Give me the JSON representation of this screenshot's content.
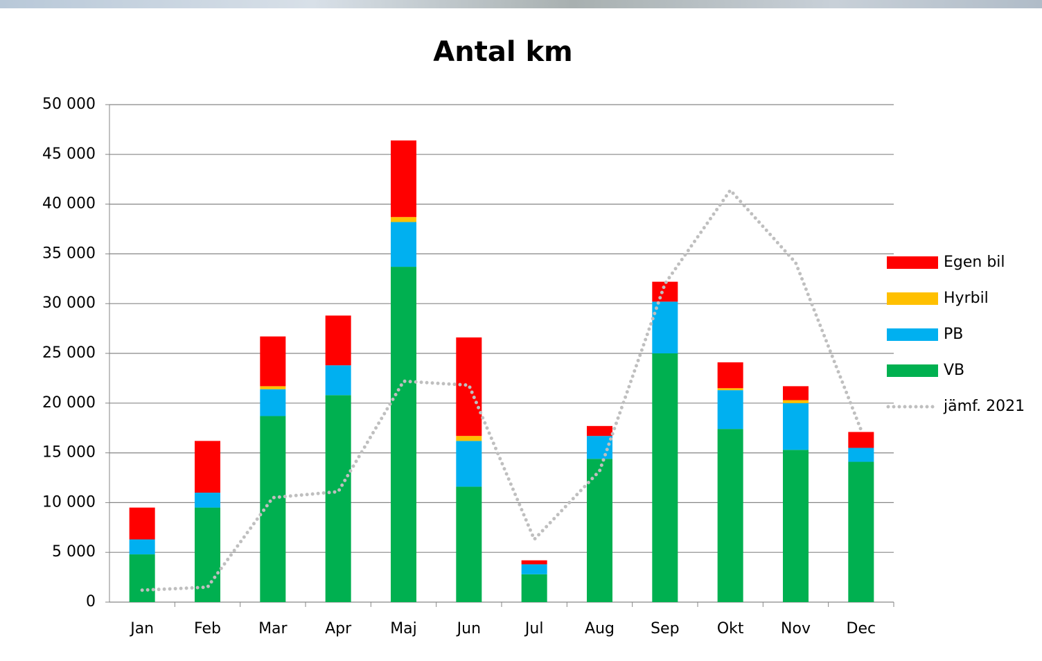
{
  "chart_data": {
    "type": "stacked-bar",
    "title": "Antal km",
    "categories": [
      "Jan",
      "Feb",
      "Mar",
      "Apr",
      "Maj",
      "Jun",
      "Jul",
      "Aug",
      "Sep",
      "Okt",
      "Nov",
      "Dec"
    ],
    "series": [
      {
        "name": "VB",
        "color": "#00b050",
        "values": [
          4800,
          9500,
          18700,
          20800,
          33700,
          11600,
          2800,
          14400,
          25000,
          17400,
          15300,
          14100
        ]
      },
      {
        "name": "PB",
        "color": "#00b0f0",
        "values": [
          1500,
          1500,
          2700,
          3000,
          4500,
          4600,
          1000,
          2300,
          5200,
          3900,
          4700,
          1400
        ]
      },
      {
        "name": "Hyrbil",
        "color": "#ffc000",
        "values": [
          0,
          0,
          300,
          0,
          500,
          500,
          0,
          0,
          0,
          200,
          300,
          0
        ]
      },
      {
        "name": "Egen bil",
        "color": "#ff0000",
        "values": [
          3200,
          5200,
          5000,
          5000,
          7700,
          9900,
          400,
          1000,
          2000,
          2600,
          1400,
          1600
        ]
      },
      {
        "name": "jämf. 2021",
        "type": "line",
        "style": "dotted",
        "color": "#bfbfbf",
        "values": [
          1200,
          1500,
          10500,
          11100,
          22200,
          21800,
          6300,
          13200,
          32000,
          41400,
          34100,
          17300
        ]
      }
    ],
    "ylim": [
      0,
      50000
    ],
    "yticks": [
      {
        "value": 0,
        "label": "0"
      },
      {
        "value": 5000,
        "label": "5 000"
      },
      {
        "value": 10000,
        "label": "10 000"
      },
      {
        "value": 15000,
        "label": "15 000"
      },
      {
        "value": 20000,
        "label": "20 000"
      },
      {
        "value": 25000,
        "label": "25 000"
      },
      {
        "value": 30000,
        "label": "30 000"
      },
      {
        "value": 35000,
        "label": "35 000"
      },
      {
        "value": 40000,
        "label": "40 000"
      },
      {
        "value": 45000,
        "label": "45 000"
      },
      {
        "value": 50000,
        "label": "50 000"
      }
    ],
    "grid": true,
    "legend": "right"
  }
}
